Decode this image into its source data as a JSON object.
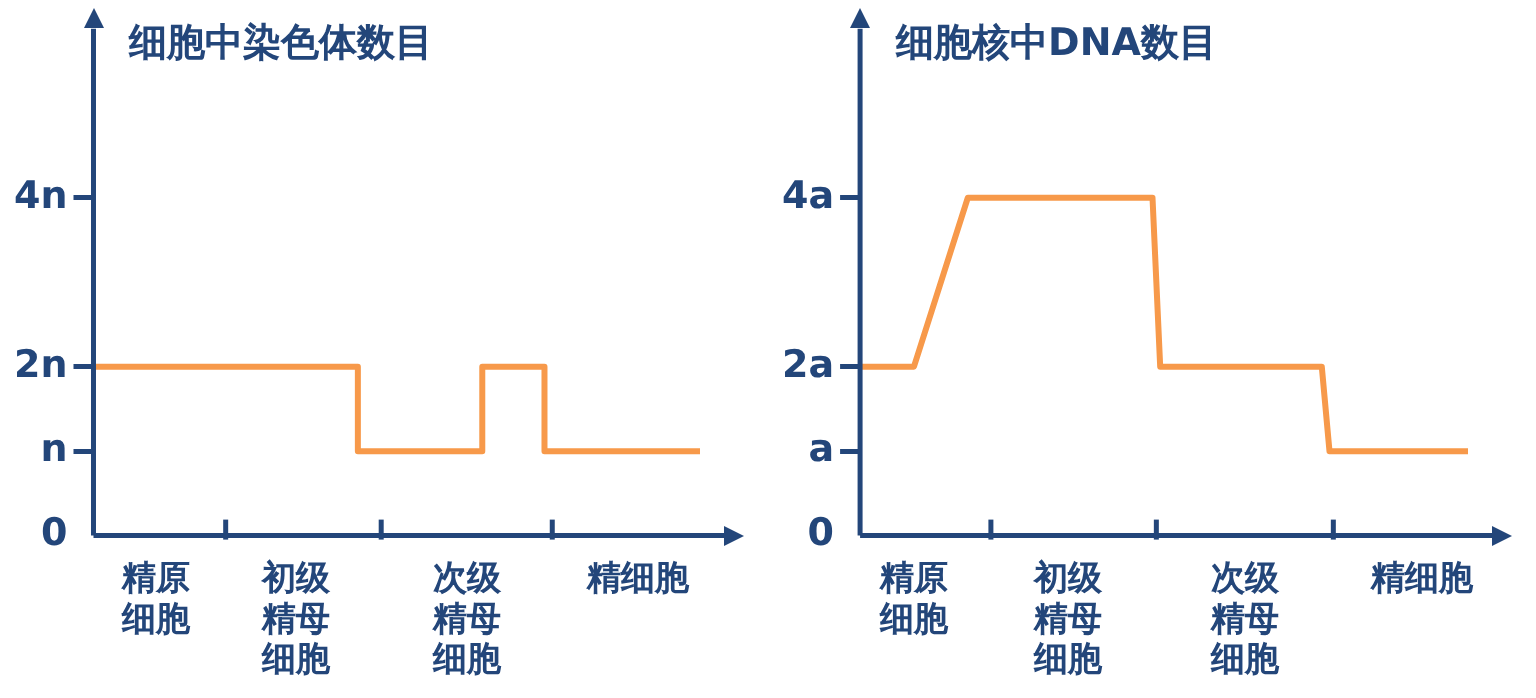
{
  "chart_data": [
    {
      "type": "step",
      "title": "细胞中染色体数目",
      "categories": [
        null,
        null,
        null,
        null,
        "精原细胞",
        null,
        null,
        null,
        null,
        null,
        null,
        null,
        null,
        "初级精母细胞",
        null,
        null,
        null,
        null,
        null,
        null,
        null,
        null,
        null,
        null,
        "次级精母细胞",
        null,
        null,
        null,
        null,
        null,
        null,
        null,
        null,
        null,
        null,
        "精细胞",
        null,
        null,
        null,
        null
      ],
      "series": [
        {
          "color": "#f7994a",
          "values": [
            2,
            2,
            2,
            2,
            2,
            2,
            2,
            2,
            2,
            2,
            2,
            2,
            2,
            2,
            2,
            2,
            2,
            2,
            1,
            1,
            1,
            1,
            1,
            1,
            1,
            1,
            2,
            2,
            2,
            2,
            1,
            1,
            1,
            1,
            1,
            1,
            1,
            1,
            1,
            1
          ]
        }
      ],
      "ylim": [
        0,
        6
      ],
      "yticks": [
        0,
        {
          "value": 1,
          "label": "n"
        },
        {
          "value": 2,
          "label": "2n"
        },
        {
          "value": 4,
          "label": "4n"
        }
      ],
      "marker": "none",
      "grid": false,
      "legend": false
    },
    {
      "type": "line",
      "title": "细胞核中DNA数目",
      "categories": [
        null,
        null,
        null,
        null,
        null,
        null,
        null,
        "精原细胞",
        null,
        null,
        null,
        null,
        null,
        null,
        null,
        null,
        null,
        null,
        null,
        null,
        null,
        null,
        null,
        null,
        null,
        null,
        null,
        "初级精母细胞",
        null,
        null,
        null,
        null,
        null,
        null,
        null,
        null,
        null,
        null,
        null,
        null,
        null,
        null,
        null,
        null,
        null,
        null,
        null,
        null,
        null,
        null,
        "次级精母细胞",
        null,
        null,
        null,
        null,
        null,
        null,
        null,
        null,
        null,
        null,
        null,
        null,
        null,
        null,
        null,
        null,
        null,
        null,
        null,
        null,
        null,
        null,
        "精细胞",
        null,
        null,
        null,
        null,
        null,
        null
      ],
      "series": [
        {
          "color": "#f7994a",
          "values": [
            2,
            2,
            2,
            2,
            2,
            2,
            2,
            2,
            null,
            null,
            null,
            null,
            null,
            null,
            4,
            4,
            4,
            4,
            4,
            4,
            4,
            4,
            4,
            4,
            4,
            4,
            4,
            4,
            4,
            4,
            4,
            4,
            4,
            4,
            4,
            4,
            4,
            4,
            4,
            2,
            2,
            2,
            2,
            2,
            2,
            2,
            2,
            2,
            2,
            2,
            2,
            2,
            2,
            2,
            2,
            2,
            2,
            2,
            2,
            2,
            2,
            1,
            1,
            1,
            1,
            1,
            1,
            1,
            1,
            1,
            1,
            1,
            1,
            1,
            1,
            1,
            1,
            1,
            1,
            1
          ]
        }
      ],
      "ylim": [
        0,
        6
      ],
      "yticks": [
        0,
        {
          "value": 1,
          "label": "a"
        },
        {
          "value": 2,
          "label": "2a"
        },
        {
          "value": 4,
          "label": "4a"
        }
      ],
      "marker": "none",
      "grid": false,
      "legend": false
    }
  ]
}
